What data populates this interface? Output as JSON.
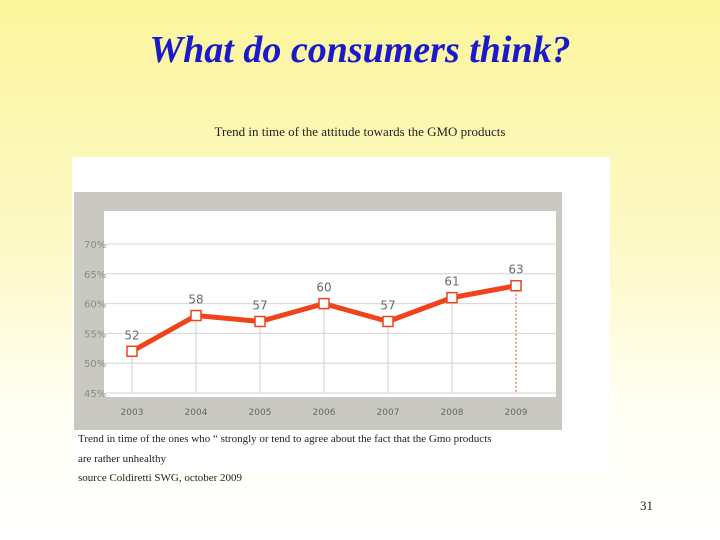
{
  "slide": {
    "title": "What do consumers think?",
    "page_number": "31",
    "caption_lines": [
      "Trend in time of the ones  who  “ strongly or tend to agree about the fact that the Gmo products",
      "are rather unhealthy",
      "source  Coldiretti SWG, october 2009"
    ]
  },
  "chart_data": {
    "type": "line",
    "title": "Trend in time of the attitude towards  the GMO products",
    "x": [
      "2003",
      "2004",
      "2005",
      "2006",
      "2007",
      "2008",
      "2009"
    ],
    "series": [
      {
        "values": [
          52,
          58,
          57,
          60,
          57,
          61,
          63
        ]
      }
    ],
    "ylim": [
      45,
      70
    ],
    "y_ticks": [
      45,
      50,
      55,
      60,
      65,
      70
    ],
    "y_tick_labels": [
      "45%",
      "50%",
      "55%",
      "60%",
      "65%",
      "70%"
    ],
    "grid": true,
    "colors": {
      "line": "#f0421b",
      "marker_fill": "#ffffff",
      "frame": "#c9c9c1",
      "plot_bg": "#ffffff",
      "grid": "#d4d4d4"
    }
  }
}
